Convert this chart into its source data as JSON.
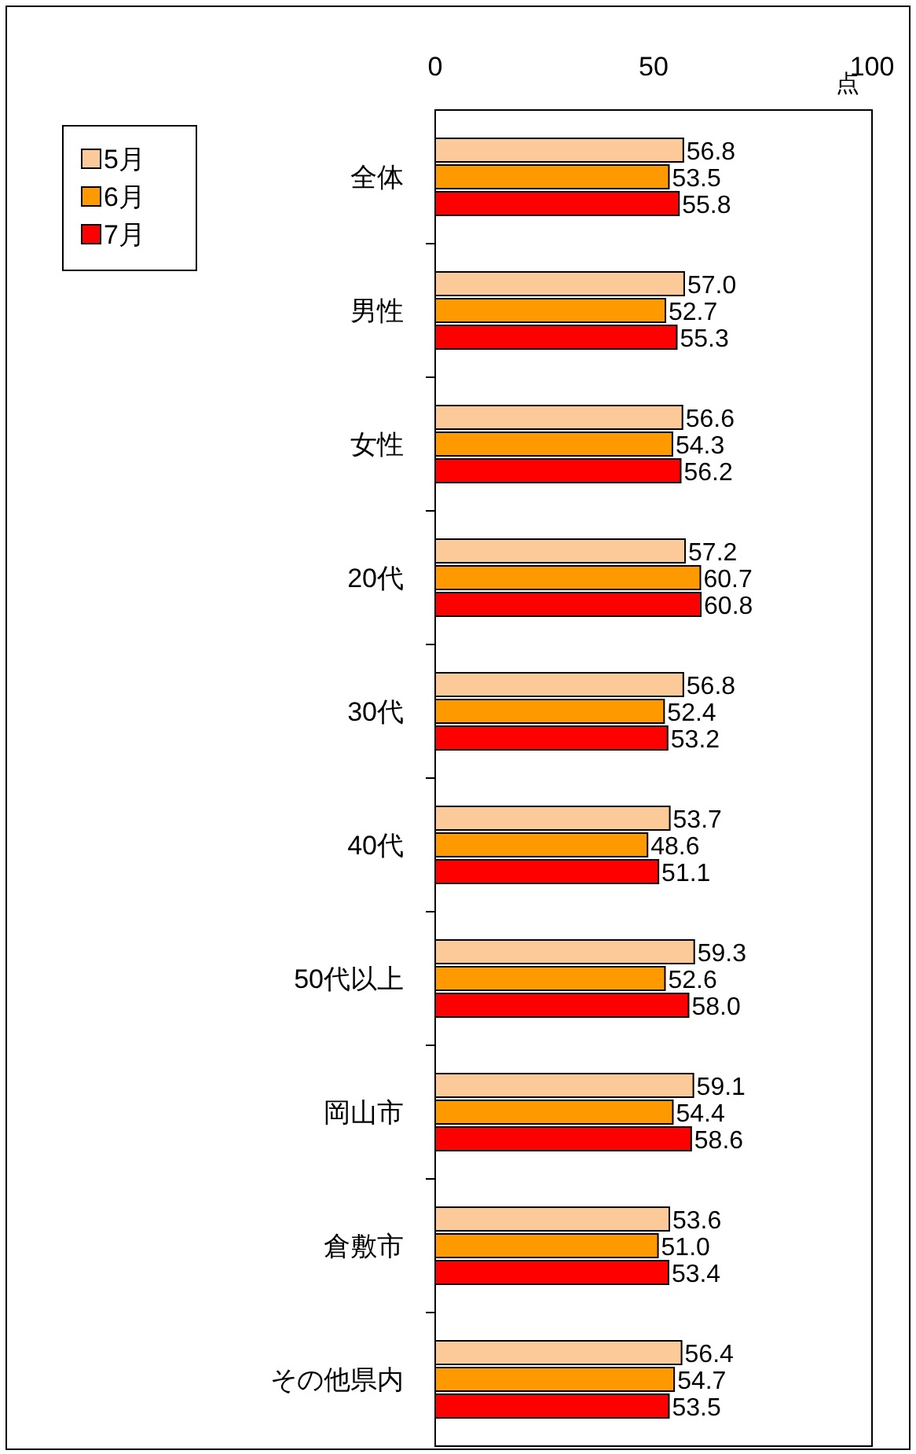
{
  "chart_data": {
    "type": "bar",
    "orientation": "horizontal",
    "xlabel": "点",
    "categories": [
      "全体",
      "男性",
      "女性",
      "20代",
      "30代",
      "40代",
      "50代以上",
      "岡山市",
      "倉敷市",
      "その他県内"
    ],
    "series": [
      {
        "name": "5月",
        "color": "#fcc998",
        "values": [
          56.8,
          57.0,
          56.6,
          57.2,
          56.8,
          53.7,
          59.3,
          59.1,
          53.6,
          56.4
        ],
        "value_labels": [
          "56.8",
          "57.0",
          "56.6",
          "57.2",
          "56.8",
          "53.7",
          "59.3",
          "59.1",
          "53.6",
          "56.4"
        ]
      },
      {
        "name": "6月",
        "color": "#ff9900",
        "values": [
          53.5,
          52.7,
          54.3,
          60.7,
          52.4,
          48.6,
          52.6,
          54.4,
          51.0,
          54.7
        ],
        "value_labels": [
          "53.5",
          "52.7",
          "54.3",
          "60.7",
          "52.4",
          "48.6",
          "52.6",
          "54.4",
          "51.0",
          "54.7"
        ]
      },
      {
        "name": "7月",
        "color": "#ff0000",
        "values": [
          55.8,
          55.3,
          56.2,
          60.8,
          53.2,
          51.1,
          58.0,
          58.6,
          53.4,
          53.5
        ],
        "value_labels": [
          "55.8",
          "55.3",
          "56.2",
          "60.8",
          "53.2",
          "51.1",
          "58.0",
          "58.6",
          "53.4",
          "53.5"
        ]
      }
    ],
    "xlim": [
      0,
      100
    ],
    "xticks": [
      0,
      50,
      100
    ],
    "legend": "top left",
    "grid": false
  }
}
